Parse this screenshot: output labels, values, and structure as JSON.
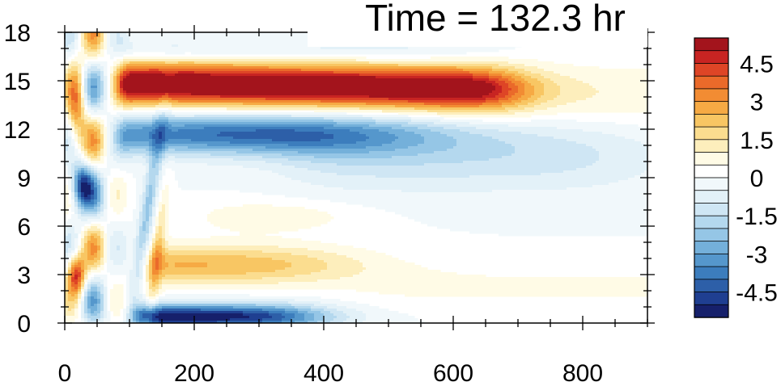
{
  "chart_data": {
    "type": "heatmap",
    "title": "Time = 132.3 hr",
    "xlabel": "",
    "ylabel": "",
    "xlim": [
      0,
      900
    ],
    "ylim": [
      0,
      18
    ],
    "x_ticks": [
      0,
      200,
      400,
      600,
      800
    ],
    "x_tick_labels": [
      "0",
      "200",
      "400",
      "600",
      "800"
    ],
    "y_ticks": [
      0,
      3,
      6,
      9,
      12,
      15,
      18
    ],
    "y_tick_labels": [
      "0",
      "3",
      "6",
      "9",
      "12",
      "15",
      "18"
    ],
    "colorbar": {
      "min": -5.5,
      "max": 5.5,
      "step": 0.5,
      "labels": [
        "4.5",
        "3",
        "1.5",
        "0",
        "-1.5",
        "-3",
        "-4.5"
      ],
      "label_values": [
        4.5,
        3,
        1.5,
        0,
        -1.5,
        -3,
        -4.5
      ],
      "colors": [
        "#16206b",
        "#1f3f91",
        "#2d5fa8",
        "#3c7dbd",
        "#5597cc",
        "#74b0da",
        "#95c6e6",
        "#b4d8ee",
        "#cfe6f4",
        "#e3f1f8",
        "#f1f8fb",
        "#ffffff",
        "#fffbe6",
        "#fdeebc",
        "#fbdd8f",
        "#f8c663",
        "#f6aa44",
        "#f28c33",
        "#ea6a2a",
        "#de4526",
        "#c82422",
        "#a3141c"
      ]
    },
    "features": [
      {
        "label": "upper positive band",
        "x_range": [
          85,
          700
        ],
        "y_center": 14.8,
        "peak": 5.5
      },
      {
        "label": "negative band below",
        "x_range": [
          90,
          900
        ],
        "y_center": 11.7,
        "peak": -4.5
      },
      {
        "label": "near-surface negative layer",
        "x_range": [
          110,
          400
        ],
        "y_center": 0.5,
        "peak": -5.0
      },
      {
        "label": "low-level positive patch",
        "x_range": [
          130,
          450
        ],
        "y_center": 3.5,
        "peak": 2.5
      },
      {
        "label": "weak positive aloft far field",
        "x_range": [
          600,
          900
        ],
        "y_center": 14.0,
        "peak": 0.8
      }
    ]
  }
}
